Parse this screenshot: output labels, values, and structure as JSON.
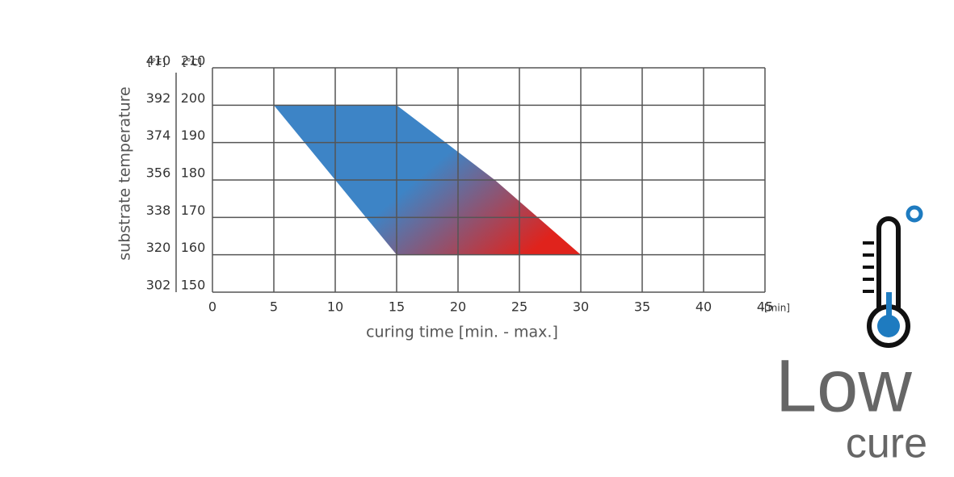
{
  "chart_data": {
    "type": "area",
    "x_label": "curing time [min. - max.]",
    "y_label": "substrate temperature",
    "x_unit": "[min]",
    "y_unit": "[°C]",
    "y2_unit": "[°F]",
    "xlim": [
      0,
      45
    ],
    "xticks": [
      0,
      5,
      10,
      15,
      20,
      25,
      30,
      35,
      40,
      45
    ],
    "ylim": [
      150,
      210
    ],
    "yticks": [
      150,
      160,
      170,
      180,
      190,
      200,
      210
    ],
    "y2lim": [
      302,
      410
    ],
    "y2ticks": [
      302,
      320,
      338,
      356,
      374,
      392,
      410
    ],
    "bounds": {
      "min": {
        "x": [
          5,
          15
        ],
        "y": [
          200,
          160
        ]
      },
      "max": {
        "x": [
          15,
          23,
          30
        ],
        "y": [
          200,
          180,
          160
        ]
      }
    },
    "colors": [
      "#3d84c6",
      "#e0231c"
    ],
    "grid": true
  },
  "branding": {
    "line1": "Low",
    "line2": "cure"
  }
}
